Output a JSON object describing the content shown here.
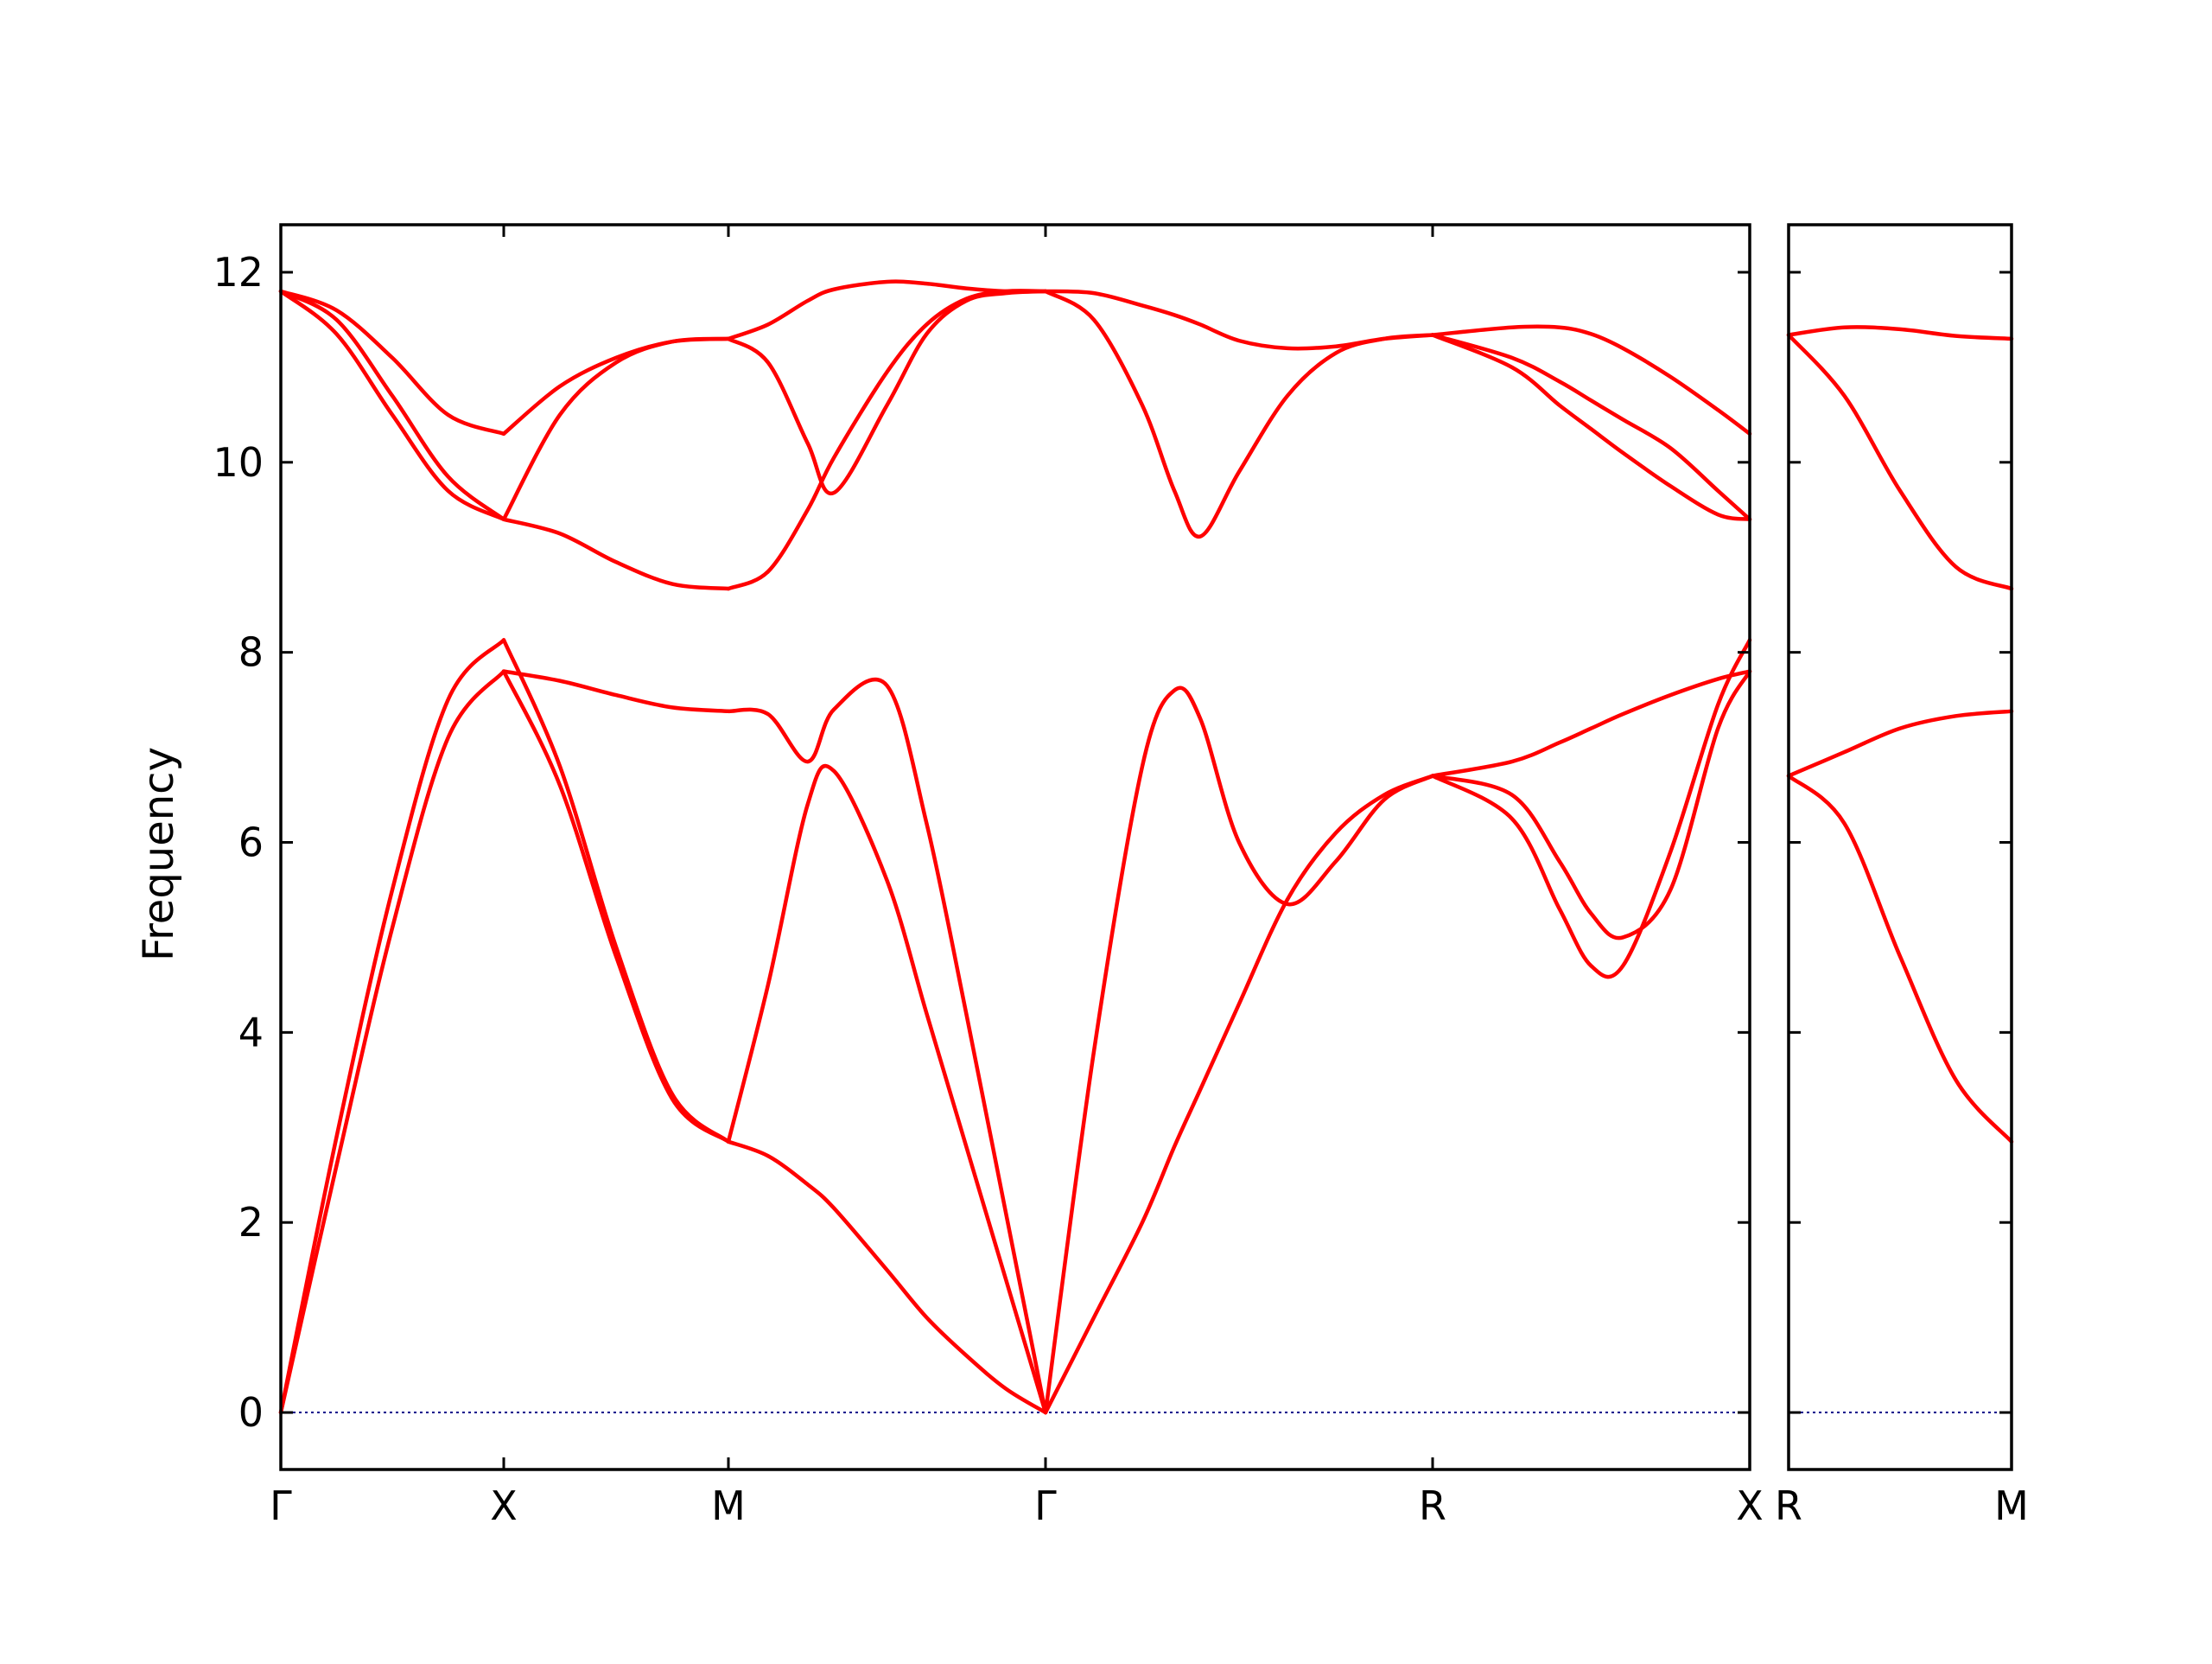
{
  "chart_data": {
    "type": "line",
    "ylabel": "Frequency",
    "ylim": [
      -0.6,
      12.5
    ],
    "yticks": [
      0,
      2,
      4,
      6,
      8,
      10,
      12
    ],
    "grid": false,
    "line_color": "#ff0000",
    "zero_line_color": "#00008b",
    "panels": [
      {
        "path_labels": [
          "Γ",
          "X",
          "M",
          "Γ",
          "R",
          "X"
        ],
        "segments": [
          {
            "start": "Γ",
            "end": "X",
            "x": [
              0,
              0.25,
              0.5,
              0.75,
              1
            ],
            "bands": [
              [
                0,
                2.6,
                5.1,
                7.1,
                7.8
              ],
              [
                0,
                2.9,
                5.5,
                7.5,
                8.13
              ],
              [
                11.8,
                11.5,
                10.7,
                9.85,
                9.4
              ],
              [
                11.8,
                11.35,
                10.5,
                9.7,
                9.4
              ],
              [
                11.8,
                11.6,
                11.1,
                10.5,
                10.3
              ]
            ]
          },
          {
            "start": "X",
            "end": "M",
            "x": [
              0,
              0.25,
              0.5,
              0.75,
              1
            ],
            "bands": [
              [
                7.8,
                6.6,
                4.8,
                3.3,
                2.85
              ],
              [
                8.13,
                6.8,
                4.9,
                3.35,
                2.85
              ],
              [
                7.8,
                7.7,
                7.55,
                7.42,
                7.38
              ],
              [
                9.4,
                9.25,
                8.95,
                8.72,
                8.67
              ],
              [
                9.4,
                10.5,
                11.05,
                11.27,
                11.3
              ],
              [
                10.3,
                10.8,
                11.1,
                11.27,
                11.3
              ]
            ]
          },
          {
            "start": "M",
            "end": "Γ",
            "x": [
              0,
              0.125,
              0.25,
              0.333,
              0.5,
              0.625,
              0.75,
              0.875,
              1
            ],
            "bands": [
              [
                2.85,
                2.7,
                2.4,
                2.15,
                1.5,
                1.0,
                0.6,
                0.25,
                0
              ],
              [
                2.85,
                4.5,
                6.4,
                6.75,
                5.6,
                4.2,
                2.8,
                1.4,
                0
              ],
              [
                7.38,
                7.35,
                6.85,
                7.4,
                7.65,
                6.2,
                4.2,
                2.1,
                0
              ],
              [
                8.67,
                8.85,
                9.5,
                10.05,
                10.95,
                11.45,
                11.72,
                11.8,
                11.8
              ],
              [
                11.3,
                11.05,
                10.2,
                9.68,
                10.6,
                11.35,
                11.7,
                11.78,
                11.8
              ],
              [
                11.3,
                11.45,
                11.7,
                11.82,
                11.9,
                11.88,
                11.83,
                11.8,
                11.8
              ]
            ]
          },
          {
            "start": "Γ",
            "end": "R",
            "x": [
              0,
              0.125,
              0.25,
              0.333,
              0.4,
              0.5,
              0.625,
              0.75,
              0.875,
              1
            ],
            "bands": [
              [
                0,
                1.0,
                2.0,
                2.8,
                3.4,
                4.3,
                5.4,
                6.1,
                6.5,
                6.7
              ],
              [
                0,
                3.8,
                6.8,
                7.6,
                7.3,
                6.0,
                5.35,
                5.8,
                6.45,
                6.7
              ],
              [
                11.8,
                11.5,
                10.6,
                9.7,
                9.22,
                9.9,
                10.7,
                11.15,
                11.3,
                11.34
              ],
              [
                11.8,
                11.78,
                11.65,
                11.55,
                11.45,
                11.28,
                11.2,
                11.22,
                11.3,
                11.34
              ]
            ]
          },
          {
            "start": "R",
            "end": "X",
            "x": [
              0,
              0.25,
              0.4,
              0.5,
              0.6,
              0.75,
              0.9,
              1
            ],
            "bands": [
              [
                6.7,
                6.5,
                5.8,
                5.25,
                5.0,
                5.5,
                7.2,
                7.8
              ],
              [
                6.7,
                6.25,
                5.3,
                4.7,
                4.7,
                5.9,
                7.45,
                8.13
              ],
              [
                6.7,
                6.85,
                7.05,
                7.2,
                7.35,
                7.55,
                7.72,
                7.8
              ],
              [
                11.34,
                11.0,
                10.6,
                10.35,
                10.1,
                9.75,
                9.45,
                9.4
              ],
              [
                11.34,
                11.1,
                10.85,
                10.65,
                10.45,
                10.15,
                9.7,
                9.4
              ],
              [
                11.34,
                11.42,
                11.42,
                11.35,
                11.2,
                10.9,
                10.55,
                10.3
              ]
            ]
          }
        ]
      },
      {
        "path_labels": [
          "R",
          "M"
        ],
        "segments": [
          {
            "start": "R",
            "end": "M",
            "x": [
              0,
              0.25,
              0.5,
              0.75,
              1
            ],
            "bands": [
              [
                6.7,
                6.2,
                4.8,
                3.5,
                2.85
              ],
              [
                6.7,
                6.95,
                7.2,
                7.33,
                7.38
              ],
              [
                11.34,
                10.7,
                9.7,
                8.9,
                8.67
              ],
              [
                11.34,
                11.42,
                11.4,
                11.33,
                11.3
              ]
            ]
          }
        ]
      }
    ]
  }
}
